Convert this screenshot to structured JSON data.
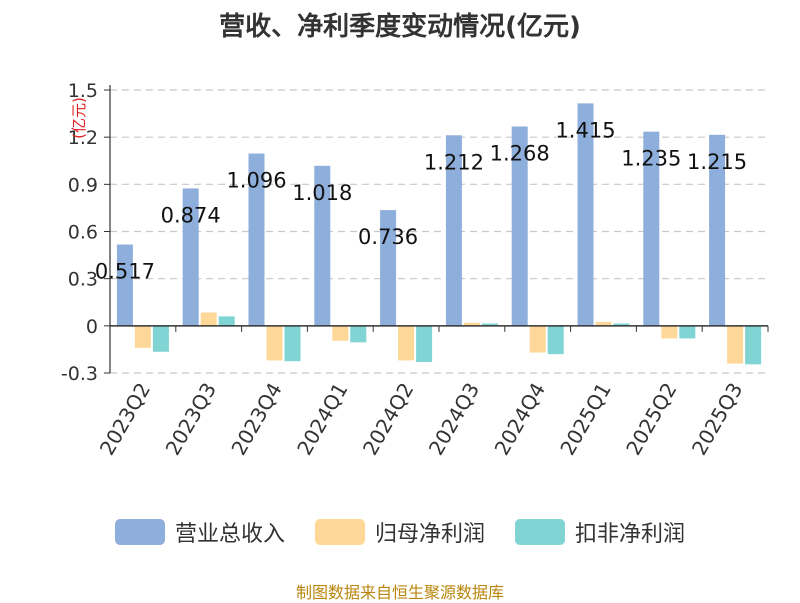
{
  "chart_data": {
    "type": "bar",
    "title": "营收、净利季度变动情况(亿元)",
    "ylabel": "(亿元)",
    "source": "制图数据来自恒生聚源数据库",
    "categories": [
      "2023Q2",
      "2023Q3",
      "2023Q4",
      "2024Q1",
      "2024Q2",
      "2024Q3",
      "2024Q4",
      "2025Q1",
      "2025Q2",
      "2025Q3"
    ],
    "yticks": [
      "1.5",
      "1.2",
      "0.9",
      "0.6",
      "0.3",
      "0",
      "-0.3"
    ],
    "ylim": [
      -0.3,
      1.5
    ],
    "grid": true,
    "legend_position": "bottom",
    "series": [
      {
        "name": "营业总收入",
        "color": "#8eaedb",
        "values": [
          0.517,
          0.874,
          1.096,
          1.018,
          0.736,
          1.212,
          1.268,
          1.415,
          1.235,
          1.215
        ],
        "labels": [
          "0.517",
          "0.874",
          "1.096",
          "1.018",
          "0.736",
          "1.212",
          "1.268",
          "1.415",
          "1.235",
          "1.215"
        ]
      },
      {
        "name": "归母净利润",
        "color": "#fdd899",
        "values": [
          -0.14,
          0.085,
          -0.22,
          -0.095,
          -0.22,
          0.02,
          -0.17,
          0.025,
          -0.08,
          -0.24
        ]
      },
      {
        "name": "扣非净利润",
        "color": "#80d4d4",
        "values": [
          -0.165,
          0.06,
          -0.225,
          -0.105,
          -0.23,
          0.015,
          -0.18,
          0.015,
          -0.08,
          -0.245
        ]
      }
    ]
  }
}
